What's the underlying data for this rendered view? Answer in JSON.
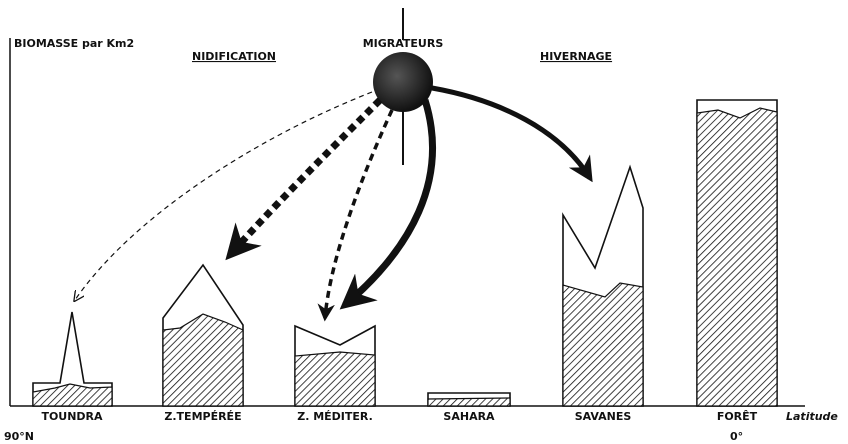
{
  "axis_label": "BIOMASSE par Km2",
  "sections": {
    "nidification": "NIDIFICATION",
    "migrateurs": "MIGRATEURS",
    "hivernage": "HIVERNAGE"
  },
  "zones": [
    "TOUNDRA",
    "Z.TEMPÉRÉE",
    "Z. MÉDITER.",
    "SAHARA",
    "SAVANES",
    "FORÊT"
  ],
  "x_axis": {
    "label": "Latitude",
    "start": "90°N",
    "end": "0°"
  }
}
